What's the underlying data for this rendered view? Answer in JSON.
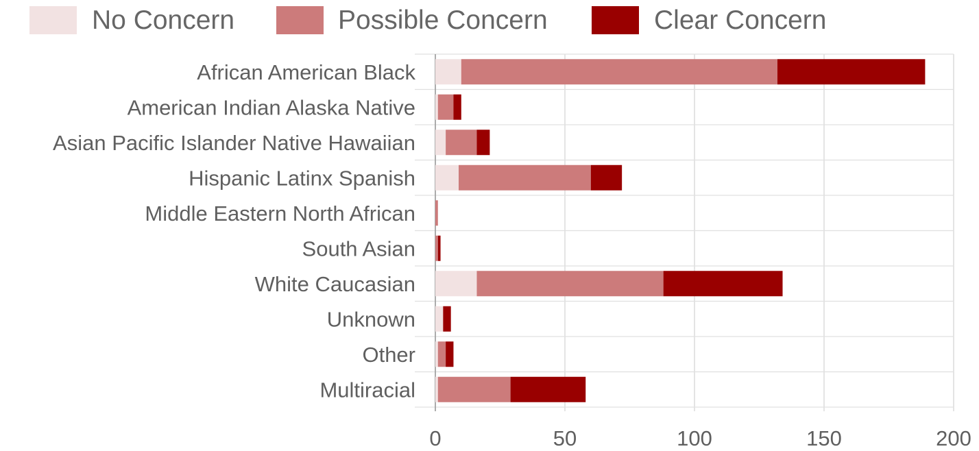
{
  "chart_data": {
    "type": "bar",
    "orientation": "horizontal",
    "stacked": true,
    "categories": [
      "African American Black",
      "American Indian Alaska Native",
      "Asian Pacific Islander Native Hawaiian",
      "Hispanic Latinx Spanish",
      "Middle Eastern North African",
      "South Asian",
      "White Caucasian",
      "Unknown",
      "Other",
      "Multiracial"
    ],
    "series": [
      {
        "name": "No Concern",
        "color": "#f2e2e2",
        "values": [
          10,
          1,
          4,
          9,
          0,
          0,
          16,
          3,
          1,
          1
        ]
      },
      {
        "name": "Possible Concern",
        "color": "#cc7b7b",
        "values": [
          122,
          6,
          12,
          51,
          1,
          1,
          72,
          0,
          3,
          28
        ]
      },
      {
        "name": "Clear Concern",
        "color": "#990000",
        "values": [
          57,
          3,
          5,
          12,
          0,
          1,
          46,
          3,
          3,
          29
        ]
      }
    ],
    "xlim": [
      0,
      200
    ],
    "xticks": [
      "0",
      "50",
      "100",
      "150",
      "200"
    ],
    "grid": true,
    "legend_position": "top",
    "title": "",
    "xlabel": "",
    "ylabel": ""
  }
}
